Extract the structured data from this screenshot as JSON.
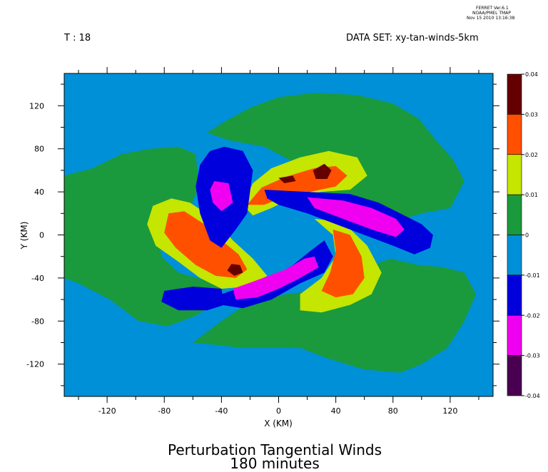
{
  "header": {
    "ferret_line1": "FERRET  Ver.6.1",
    "ferret_line2": "NOAA/PMEL TMAP",
    "ferret_line3": "Nov 15 2010 13:16:38",
    "time_label": "T : 18",
    "dataset_label": "DATA SET: xy-tan-winds-5km"
  },
  "chart_data": {
    "type": "heatmap",
    "title": "Perturbation Tangential Winds",
    "subtitle": "180 minutes",
    "xlabel": "X (KM)",
    "ylabel": "Y (KM)",
    "xlim": [
      -150,
      150
    ],
    "ylim": [
      -150,
      150
    ],
    "x_ticks": [
      -120,
      -80,
      -40,
      0,
      40,
      80,
      120
    ],
    "y_ticks": [
      120,
      80,
      40,
      0,
      -40,
      -80,
      -120
    ],
    "x_tick_labels": [
      "-120",
      "-80",
      "-40",
      "0",
      "40",
      "80",
      "120"
    ],
    "y_tick_labels": [
      "120",
      "80",
      "40",
      "0",
      "-40",
      "-80",
      "-120"
    ],
    "colorbar": {
      "levels": [
        0.04,
        0.03,
        0.02,
        0.01,
        0,
        -0.01,
        -0.02,
        -0.03,
        -0.04
      ],
      "labels": [
        "0.04",
        "0.03",
        "0.02",
        "0.01",
        "0",
        "-0.01",
        "-0.02",
        "-0.03",
        "-0.04"
      ],
      "colors": [
        "#650000",
        "#ff5000",
        "#c4e600",
        "#1a9a3c",
        "#0090d8",
        "#0000dd",
        "#f000f0",
        "#4a0050"
      ]
    },
    "background_color": "#0090d8",
    "regions": [
      {
        "level": 0.0,
        "color": "#1a9a3c",
        "points": [
          [
            -150,
            55
          ],
          [
            -130,
            62
          ],
          [
            -110,
            75
          ],
          [
            -90,
            80
          ],
          [
            -70,
            82
          ],
          [
            -58,
            75
          ],
          [
            -56,
            45
          ],
          [
            -62,
            25
          ],
          [
            -75,
            15
          ],
          [
            -85,
            5
          ],
          [
            -82,
            -20
          ],
          [
            -70,
            -35
          ],
          [
            -52,
            -42
          ],
          [
            -40,
            -48
          ],
          [
            -45,
            -65
          ],
          [
            -58,
            -75
          ],
          [
            -78,
            -85
          ],
          [
            -98,
            -80
          ],
          [
            -118,
            -60
          ],
          [
            -140,
            -45
          ],
          [
            -150,
            -40
          ]
        ]
      },
      {
        "level": 0.0,
        "color": "#1a9a3c",
        "points": [
          [
            -60,
            -100
          ],
          [
            -40,
            -80
          ],
          [
            -20,
            -62
          ],
          [
            5,
            -55
          ],
          [
            25,
            -52
          ],
          [
            45,
            -45
          ],
          [
            62,
            -30
          ],
          [
            78,
            -22
          ],
          [
            98,
            -28
          ],
          [
            115,
            -30
          ],
          [
            130,
            -35
          ],
          [
            138,
            -55
          ],
          [
            130,
            -80
          ],
          [
            118,
            -105
          ],
          [
            100,
            -120
          ],
          [
            85,
            -128
          ],
          [
            60,
            -125
          ],
          [
            35,
            -115
          ],
          [
            15,
            -105
          ],
          [
            -5,
            -105
          ],
          [
            -25,
            -105
          ],
          [
            -45,
            -102
          ]
        ]
      },
      {
        "level": 0.0,
        "color": "#1a9a3c",
        "points": [
          [
            -50,
            95
          ],
          [
            -38,
            105
          ],
          [
            -20,
            118
          ],
          [
            0,
            128
          ],
          [
            25,
            132
          ],
          [
            55,
            130
          ],
          [
            80,
            122
          ],
          [
            98,
            108
          ],
          [
            110,
            88
          ],
          [
            122,
            70
          ],
          [
            130,
            50
          ],
          [
            120,
            25
          ],
          [
            100,
            20
          ],
          [
            70,
            8
          ],
          [
            45,
            25
          ],
          [
            25,
            48
          ],
          [
            10,
            68
          ],
          [
            -10,
            82
          ],
          [
            -35,
            88
          ]
        ]
      },
      {
        "level": 0.01,
        "color": "#c4e600",
        "points": [
          [
            -88,
            27
          ],
          [
            -75,
            34
          ],
          [
            -62,
            30
          ],
          [
            -45,
            15
          ],
          [
            -32,
            -5
          ],
          [
            -18,
            -22
          ],
          [
            -8,
            -38
          ],
          [
            -22,
            -48
          ],
          [
            -40,
            -50
          ],
          [
            -55,
            -40
          ],
          [
            -70,
            -25
          ],
          [
            -86,
            -10
          ],
          [
            -92,
            10
          ]
        ]
      },
      {
        "level": 0.02,
        "color": "#ff5000",
        "points": [
          [
            -77,
            20
          ],
          [
            -66,
            22
          ],
          [
            -52,
            10
          ],
          [
            -40,
            -5
          ],
          [
            -28,
            -18
          ],
          [
            -22,
            -32
          ],
          [
            -30,
            -40
          ],
          [
            -44,
            -38
          ],
          [
            -58,
            -28
          ],
          [
            -72,
            -12
          ],
          [
            -80,
            2
          ]
        ]
      },
      {
        "level": 0.03,
        "color": "#650000",
        "points": [
          [
            -33,
            -27
          ],
          [
            -27,
            -28
          ],
          [
            -25,
            -35
          ],
          [
            -31,
            -38
          ],
          [
            -36,
            -33
          ]
        ]
      },
      {
        "level": 0.01,
        "color": "#c4e600",
        "points": [
          [
            -25,
            28
          ],
          [
            -18,
            48
          ],
          [
            -5,
            62
          ],
          [
            15,
            72
          ],
          [
            35,
            78
          ],
          [
            55,
            72
          ],
          [
            62,
            55
          ],
          [
            50,
            42
          ],
          [
            30,
            40
          ],
          [
            10,
            35
          ],
          [
            -5,
            25
          ],
          [
            -18,
            18
          ]
        ]
      },
      {
        "level": 0.02,
        "color": "#ff5000",
        "points": [
          [
            -22,
            28
          ],
          [
            -12,
            44
          ],
          [
            5,
            54
          ],
          [
            25,
            62
          ],
          [
            40,
            64
          ],
          [
            48,
            55
          ],
          [
            40,
            45
          ],
          [
            22,
            40
          ],
          [
            5,
            36
          ],
          [
            -10,
            28
          ]
        ]
      },
      {
        "level": 0.03,
        "color": "#650000",
        "points": [
          [
            24,
            60
          ],
          [
            32,
            66
          ],
          [
            37,
            60
          ],
          [
            34,
            52
          ],
          [
            26,
            52
          ]
        ]
      },
      {
        "level": 0.03,
        "color": "#650000",
        "points": [
          [
            0,
            53
          ],
          [
            10,
            55
          ],
          [
            12,
            50
          ],
          [
            4,
            48
          ]
        ]
      },
      {
        "level": 0.01,
        "color": "#c4e600",
        "points": [
          [
            25,
            15
          ],
          [
            45,
            12
          ],
          [
            62,
            -10
          ],
          [
            72,
            -35
          ],
          [
            65,
            -55
          ],
          [
            50,
            -65
          ],
          [
            30,
            -72
          ],
          [
            15,
            -70
          ],
          [
            15,
            -55
          ],
          [
            30,
            -40
          ],
          [
            40,
            -20
          ],
          [
            38,
            0
          ]
        ]
      },
      {
        "level": 0.02,
        "color": "#ff5000",
        "points": [
          [
            38,
            5
          ],
          [
            50,
            0
          ],
          [
            58,
            -20
          ],
          [
            60,
            -40
          ],
          [
            52,
            -55
          ],
          [
            40,
            -58
          ],
          [
            30,
            -52
          ],
          [
            36,
            -35
          ],
          [
            40,
            -15
          ]
        ]
      },
      {
        "level": -0.01,
        "color": "#0000dd",
        "points": [
          [
            -38,
            82
          ],
          [
            -25,
            78
          ],
          [
            -18,
            60
          ],
          [
            -20,
            40
          ],
          [
            -22,
            20
          ],
          [
            -30,
            5
          ],
          [
            -40,
            -12
          ],
          [
            -48,
            -5
          ],
          [
            -55,
            20
          ],
          [
            -58,
            45
          ],
          [
            -55,
            65
          ],
          [
            -48,
            78
          ]
        ]
      },
      {
        "level": -0.03,
        "color": "#f000f0",
        "points": [
          [
            -45,
            50
          ],
          [
            -35,
            48
          ],
          [
            -32,
            30
          ],
          [
            -40,
            22
          ],
          [
            -46,
            30
          ],
          [
            -48,
            42
          ]
        ]
      },
      {
        "level": -0.01,
        "color": "#0000dd",
        "points": [
          [
            -10,
            42
          ],
          [
            20,
            40
          ],
          [
            50,
            38
          ],
          [
            70,
            30
          ],
          [
            85,
            20
          ],
          [
            100,
            10
          ],
          [
            108,
            0
          ],
          [
            106,
            -12
          ],
          [
            95,
            -18
          ],
          [
            80,
            -10
          ],
          [
            60,
            0
          ],
          [
            40,
            10
          ],
          [
            20,
            20
          ],
          [
            0,
            28
          ],
          [
            -8,
            34
          ]
        ]
      },
      {
        "level": -0.03,
        "color": "#f000f0",
        "points": [
          [
            20,
            35
          ],
          [
            45,
            32
          ],
          [
            65,
            25
          ],
          [
            82,
            15
          ],
          [
            88,
            5
          ],
          [
            82,
            -2
          ],
          [
            65,
            5
          ],
          [
            45,
            15
          ],
          [
            25,
            25
          ]
        ]
      },
      {
        "level": -0.01,
        "color": "#0000dd",
        "points": [
          [
            32,
            -5
          ],
          [
            38,
            -20
          ],
          [
            32,
            -35
          ],
          [
            15,
            -45
          ],
          [
            -5,
            -60
          ],
          [
            -25,
            -68
          ],
          [
            -40,
            -65
          ],
          [
            -40,
            -55
          ],
          [
            -25,
            -48
          ],
          [
            -5,
            -40
          ],
          [
            10,
            -28
          ],
          [
            22,
            -15
          ]
        ]
      },
      {
        "level": -0.03,
        "color": "#f000f0",
        "points": [
          [
            25,
            -20
          ],
          [
            28,
            -30
          ],
          [
            15,
            -40
          ],
          [
            0,
            -50
          ],
          [
            -15,
            -58
          ],
          [
            -30,
            -60
          ],
          [
            -32,
            -50
          ],
          [
            -15,
            -42
          ],
          [
            5,
            -32
          ],
          [
            18,
            -22
          ]
        ]
      },
      {
        "level": -0.01,
        "color": "#0000dd",
        "points": [
          [
            -80,
            -52
          ],
          [
            -60,
            -48
          ],
          [
            -40,
            -50
          ],
          [
            -38,
            -65
          ],
          [
            -50,
            -70
          ],
          [
            -70,
            -70
          ],
          [
            -82,
            -62
          ]
        ]
      }
    ]
  }
}
